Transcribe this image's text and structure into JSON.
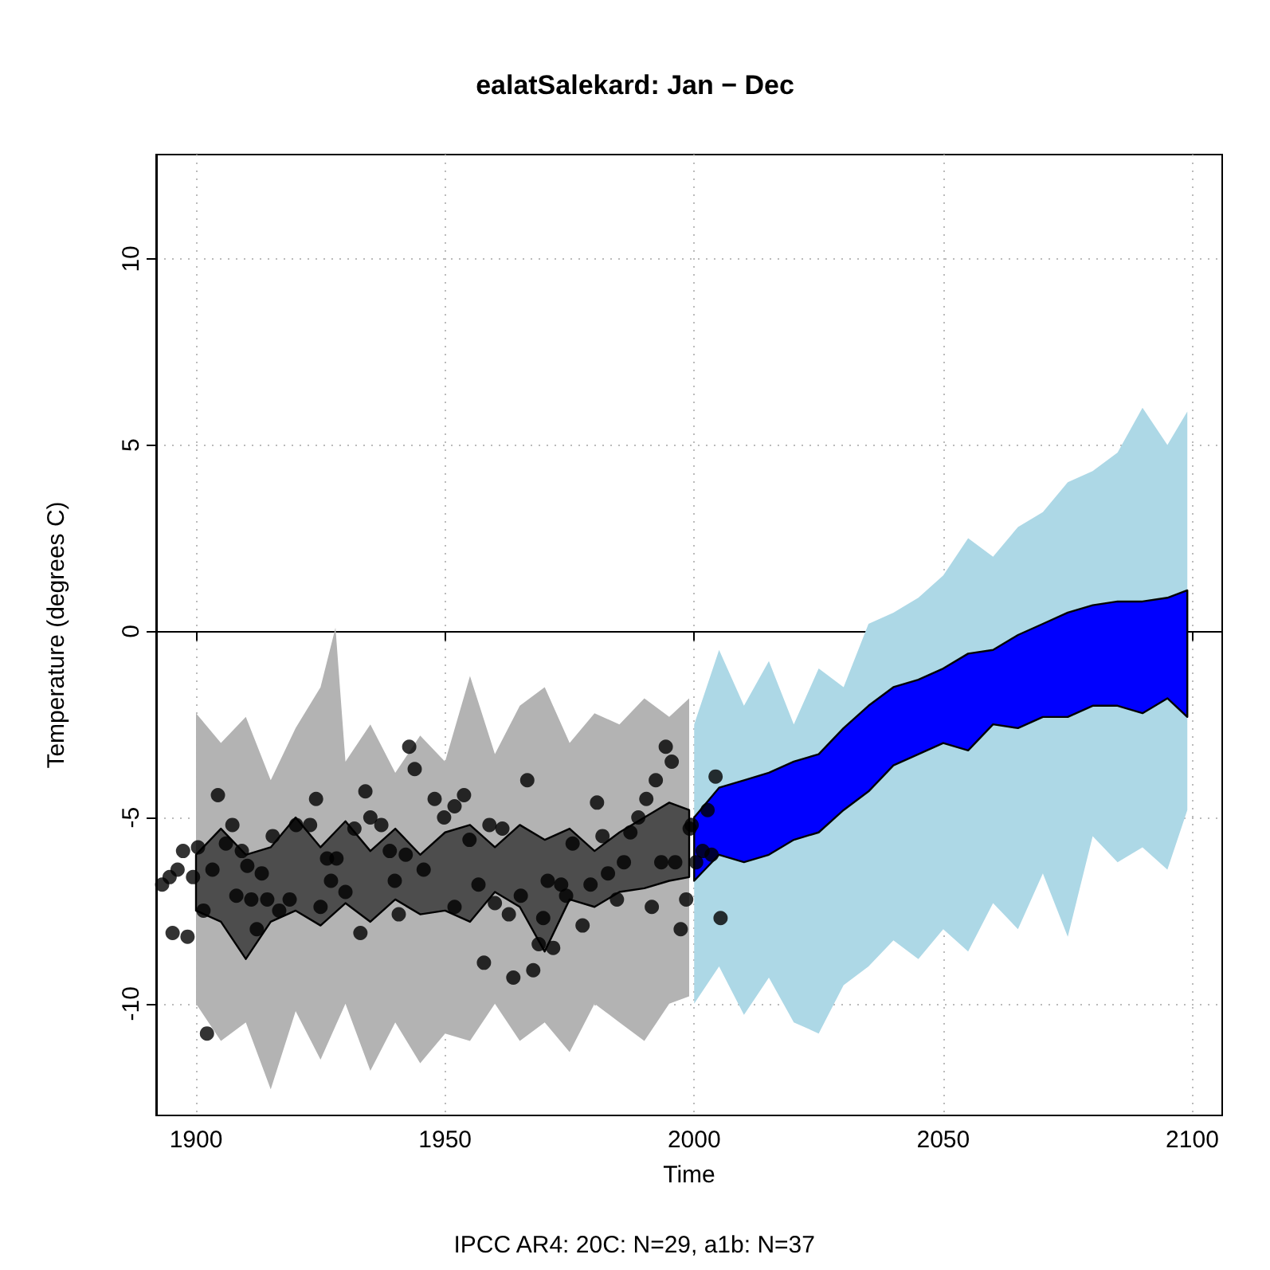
{
  "chart_data": {
    "type": "line",
    "title": "ealatSalekard: Jan − Dec",
    "xlabel": "Time",
    "ylabel": "Temperature (degrees C)",
    "annotations": [
      "IPCC AR4: 20C: N=29, a1b: N=37"
    ],
    "xlim": [
      1892,
      2106
    ],
    "ylim": [
      -13,
      12.8
    ],
    "xticks": [
      1900,
      1950,
      2000,
      2050,
      2100
    ],
    "yticks": [
      -10,
      -5,
      0,
      5,
      10
    ],
    "grid": true,
    "series": [
      {
        "color": "#b3b3b3",
        "x": [
          1900,
          1905,
          1910,
          1915,
          1920,
          1925,
          1928,
          1930,
          1935,
          1940,
          1945,
          1950,
          1955,
          1960,
          1965,
          1970,
          1975,
          1980,
          1985,
          1990,
          1995,
          1999
        ],
        "values": [
          null,
          null,
          null,
          null,
          null,
          null,
          null,
          null,
          null,
          null,
          null,
          null,
          null,
          null,
          null,
          null,
          null,
          null,
          null,
          null,
          null,
          null
        ],
        "upper": [
          -2.2,
          -3.0,
          -2.3,
          -4.0,
          -2.6,
          -1.5,
          0.1,
          -3.5,
          -2.5,
          -3.8,
          -2.8,
          -3.5,
          -1.2,
          -3.3,
          -2.0,
          -1.5,
          -3.0,
          -2.2,
          -2.5,
          -1.8,
          -2.3,
          -1.8
        ],
        "lower": [
          -10.0,
          -11.0,
          -10.5,
          -12.3,
          -10.2,
          -11.5,
          -10.6,
          -10.0,
          -11.8,
          -10.5,
          -11.6,
          -10.8,
          -11.0,
          -10.0,
          -11.0,
          -10.5,
          -11.3,
          -10.0,
          -10.5,
          -11.0,
          -10.0,
          -9.8
        ]
      },
      {
        "color": "#add8e6",
        "x": [
          2000,
          2005,
          2010,
          2015,
          2020,
          2025,
          2030,
          2035,
          2040,
          2045,
          2050,
          2055,
          2060,
          2065,
          2070,
          2075,
          2080,
          2085,
          2090,
          2095,
          2099
        ],
        "values": [
          null,
          null,
          null,
          null,
          null,
          null,
          null,
          null,
          null,
          null,
          null,
          null,
          null,
          null,
          null,
          null,
          null,
          null,
          null,
          null,
          null
        ],
        "upper": [
          -2.5,
          -0.5,
          -2.0,
          -0.8,
          -2.5,
          -1.0,
          -1.5,
          0.2,
          0.5,
          0.9,
          1.5,
          2.5,
          2.0,
          2.8,
          3.2,
          4.0,
          4.3,
          4.8,
          6.0,
          5.0,
          5.9
        ],
        "lower": [
          -10.0,
          -9.0,
          -10.3,
          -9.3,
          -10.5,
          -10.8,
          -9.5,
          -9.0,
          -8.3,
          -8.8,
          -8.0,
          -8.6,
          -7.3,
          -8.0,
          -6.5,
          -8.2,
          -5.5,
          -6.2,
          -5.8,
          -6.4,
          -4.8
        ]
      },
      {
        "color": "#4d4d4d",
        "line_style": "solid",
        "x": [
          1900,
          1905,
          1910,
          1915,
          1920,
          1925,
          1930,
          1935,
          1940,
          1945,
          1950,
          1955,
          1960,
          1965,
          1970,
          1975,
          1980,
          1985,
          1990,
          1995,
          1999
        ],
        "values": [
          null,
          null,
          null,
          null,
          null,
          null,
          null,
          null,
          null,
          null,
          null,
          null,
          null,
          null,
          null,
          null,
          null,
          null,
          null,
          null,
          null
        ],
        "upper": [
          -6.0,
          -5.3,
          -6.0,
          -5.8,
          -5.0,
          -5.8,
          -5.1,
          -5.9,
          -5.3,
          -6.0,
          -5.4,
          -5.2,
          -5.8,
          -5.2,
          -5.6,
          -5.3,
          -5.9,
          -5.4,
          -5.0,
          -4.6,
          -4.8
        ],
        "lower": [
          -7.5,
          -7.8,
          -8.8,
          -7.8,
          -7.5,
          -7.9,
          -7.3,
          -7.8,
          -7.2,
          -7.6,
          -7.5,
          -7.8,
          -7.0,
          -7.4,
          -8.6,
          -7.2,
          -7.4,
          -7.0,
          -6.9,
          -6.7,
          -6.6
        ]
      },
      {
        "color": "#0000ff",
        "line_style": "solid",
        "x": [
          2000,
          2005,
          2010,
          2015,
          2020,
          2025,
          2030,
          2035,
          2040,
          2045,
          2050,
          2055,
          2060,
          2065,
          2070,
          2075,
          2080,
          2085,
          2090,
          2095,
          2099
        ],
        "values": [
          null,
          null,
          null,
          null,
          null,
          null,
          null,
          null,
          null,
          null,
          null,
          null,
          null,
          null,
          null,
          null,
          null,
          null,
          null,
          null,
          null
        ],
        "upper": [
          -5.0,
          -4.2,
          -4.0,
          -3.8,
          -3.5,
          -3.3,
          -2.6,
          -2.0,
          -1.5,
          -1.3,
          -1.0,
          -0.6,
          -0.5,
          -0.1,
          0.2,
          0.5,
          0.7,
          0.8,
          0.8,
          0.9,
          1.1
        ],
        "lower": [
          -6.7,
          -6.0,
          -6.2,
          -6.0,
          -5.6,
          -5.4,
          -4.8,
          -4.3,
          -3.6,
          -3.3,
          -3.0,
          -3.2,
          -2.5,
          -2.6,
          -2.3,
          -2.3,
          -2.0,
          -2.0,
          -2.2,
          -1.8,
          -2.3
        ]
      },
      {
        "type": "scatter",
        "color": "#000000",
        "marker": "circle",
        "x": [
          1893.2,
          1894.7,
          1896.3,
          1897.4,
          1895.3,
          1898.3,
          1899.4,
          1900.4,
          1901.5,
          1902.2,
          1903.3,
          1904.4,
          1906,
          1907.3,
          1908.1,
          1909.2,
          1910.3,
          1911.1,
          1912.2,
          1913.2,
          1914.3,
          1915.4,
          1916.7,
          1918.8,
          1920.1,
          1922.9,
          1924.1,
          1925,
          1926.3,
          1928.2,
          1927.1,
          1930,
          1931.8,
          1933,
          1934,
          1935,
          1937.2,
          1938.9,
          1939.9,
          1940.7,
          1942.8,
          1943.9,
          1942.1,
          1945.7,
          1947.9,
          1949.8,
          1951.9,
          1953.8,
          1951.9,
          1954.9,
          1956.7,
          1957.8,
          1958.9,
          1960,
          1961.5,
          1962.8,
          1963.7,
          1965.2,
          1966.5,
          1967.7,
          1968.8,
          1969.7,
          1971.7,
          1970.6,
          1973.3,
          1974.3,
          1975.6,
          1977.6,
          1979.2,
          1980.5,
          1981.6,
          1982.7,
          1984.5,
          1985.9,
          1987.2,
          1988.8,
          1990.4,
          1991.5,
          1992.3,
          1993.4,
          1994.3,
          1995.5,
          1996.2,
          1997.3,
          1998.4,
          1999.1,
          1999.5,
          2000.4,
          2001.7,
          2002.7,
          2004.3,
          2005.3,
          2003.5
        ],
        "values": [
          -6.8,
          -6.6,
          -6.4,
          -5.9,
          -8.1,
          -8.2,
          -6.6,
          -5.8,
          -7.5,
          -10.8,
          -6.4,
          -4.4,
          -5.7,
          -5.2,
          -7.1,
          -5.9,
          -6.3,
          -7.2,
          -8.0,
          -6.5,
          -7.2,
          -5.5,
          -7.5,
          -7.2,
          -5.2,
          -5.2,
          -4.5,
          -7.4,
          -6.1,
          -6.1,
          -6.7,
          -7.0,
          -5.3,
          -8.1,
          -4.3,
          -5.0,
          -5.2,
          -5.9,
          -6.7,
          -7.6,
          -3.1,
          -3.7,
          -6.0,
          -6.4,
          -4.5,
          -5.0,
          -4.7,
          -4.4,
          -7.4,
          -5.6,
          -6.8,
          -8.9,
          -5.2,
          -7.3,
          -5.3,
          -7.6,
          -9.3,
          -7.1,
          -4.0,
          -9.1,
          -8.4,
          -7.7,
          -8.5,
          -6.7,
          -6.8,
          -7.1,
          -5.7,
          -7.9,
          -6.8,
          -4.6,
          -5.5,
          -6.5,
          -7.2,
          -6.2,
          -5.4,
          -5.0,
          -4.5,
          -7.4,
          -4.0,
          -6.2,
          -3.1,
          -3.5,
          -6.2,
          -8.0,
          -7.2,
          -5.3,
          -5.2,
          -6.2,
          -5.9,
          -4.8,
          -3.9,
          -7.7,
          -6.0
        ]
      }
    ]
  }
}
